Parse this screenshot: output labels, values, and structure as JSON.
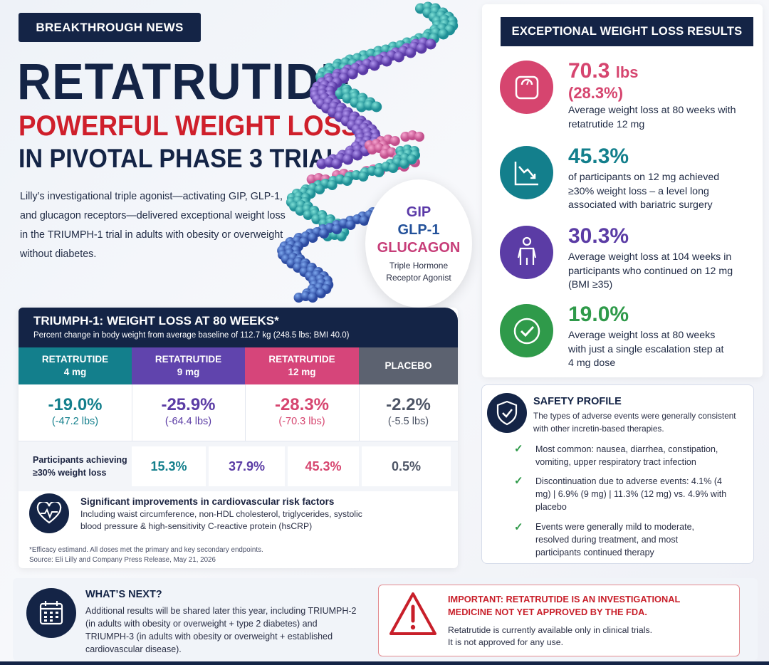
{
  "header": {
    "badge": "BREAKTHROUGH NEWS",
    "title_line1": "RETATRUTIDE",
    "title_line2": "POWERFUL WEIGHT LOSS",
    "title_line3": "IN PIVOTAL PHASE 3 TRIAL",
    "intro": "Lilly’s investigational triple agonist—activating GIP, GLP-1, and glucagon receptors—delivered exceptional weight loss in the TRIUMPH-1 trial in adults with obesity or overweight without diabetes."
  },
  "hormones": {
    "gip": "GIP",
    "glp1": "GLP-1",
    "glucagon": "GLUCAGON",
    "subtitle": "Triple Hormone Receptor Agonist"
  },
  "results": {
    "header": "EXCEPTIONAL WEIGHT LOSS RESULTS",
    "items": [
      {
        "value": "70.3",
        "unit": "lbs",
        "sub": "(28.3%)",
        "desc": "Average weight loss at 80 weeks with retatrutide 12 mg",
        "color": "#d6456f",
        "icon": "scale-icon"
      },
      {
        "value": "45.3%",
        "unit": "",
        "sub": "",
        "desc": "of participants on 12 mg achieved ≥30% weight loss – a level long associated with bariatric surgery",
        "color": "#137f8c",
        "icon": "trend-down-icon"
      },
      {
        "value": "30.3%",
        "unit": "",
        "sub": "",
        "desc": "Average weight loss at 104 weeks in participants who continued on 12 mg (BMI ≥35)",
        "color": "#5b3ca5",
        "icon": "person-icon"
      },
      {
        "value": "19.0%",
        "unit": "",
        "sub": "",
        "desc": "Average weight loss at 80 weeks with just a single escalation step at 4 mg dose",
        "color": "#2f9a4a",
        "icon": "check-circle-icon"
      }
    ]
  },
  "trial": {
    "title": "TRIUMPH-1: WEIGHT LOSS AT 80 WEEKS*",
    "subtitle": "Percent change in body weight from average baseline of 112.7 kg (248.5 lbs; BMI 40.0)",
    "columns": [
      {
        "name": "RETATRUTIDE",
        "dose": "4 mg",
        "pct": "-19.0%",
        "lbs": "(-47.2 lbs)",
        "achieve": "15.3%",
        "color": "#137f8c",
        "pct_color": "#137f8c"
      },
      {
        "name": "RETATRUTIDE",
        "dose": "9 mg",
        "pct": "-25.9%",
        "lbs": "(-64.4 lbs)",
        "achieve": "37.9%",
        "color": "#6044ad",
        "pct_color": "#5b3ca5"
      },
      {
        "name": "RETATRUTIDE",
        "dose": "12 mg",
        "pct": "-28.3%",
        "lbs": "(-70.3 lbs)",
        "achieve": "45.3%",
        "color": "#d6457a",
        "pct_color": "#d6456f"
      },
      {
        "name": "PLACEBO",
        "dose": "",
        "pct": "-2.2%",
        "lbs": "(-5.5 lbs)",
        "achieve": "0.5%",
        "color": "#5c6270",
        "pct_color": "#4d5566"
      }
    ],
    "achieve_label": "Participants achieving ≥30% weight loss",
    "cv_title": "Significant improvements in cardiovascular risk factors",
    "cv_text": "Including waist circumference, non-HDL cholesterol, triglycerides, systolic blood pressure & high-sensitivity C-reactive protein (hsCRP)",
    "footnote1": "*Efficacy estimand. All doses met the primary and key secondary endpoints.",
    "footnote2": "Source: Eli Lilly and Company Press Release, May 21, 2026"
  },
  "safety": {
    "title": "SAFETY PROFILE",
    "intro": "The types of adverse events were generally consistent with other incretin-based therapies.",
    "items": [
      "Most common: nausea, diarrhea, constipation, vomiting, upper respiratory tract infection",
      "Discontinuation due to adverse events: 4.1% (4 mg) | 6.9% (9 mg) | 11.3% (12 mg) vs. 4.9% with placebo",
      "Events were generally mild to moderate, resolved during treatment, and most participants continued therapy"
    ]
  },
  "next": {
    "title": "WHAT’S NEXT?",
    "text": "Additional results will be shared later this year, including TRIUMPH-2 (in adults with obesity or overweight + type 2 diabetes) and TRIUMPH-3 (in adults with obesity or overweight + established cardiovascular disease)."
  },
  "warning": {
    "title": "IMPORTANT: RETATRUTIDE IS AN INVESTIGATIONAL MEDICINE NOT YET APPROVED BY THE FDA.",
    "line1": "Retatrutide is currently available only in clinical trials.",
    "line2": "It is not approved for any use."
  },
  "colors": {
    "navy": "#142446",
    "red": "#cf1f2b",
    "teal": "#137f8c",
    "purple": "#5b3ca5",
    "pink": "#d6456f",
    "green": "#2f9a4a"
  }
}
